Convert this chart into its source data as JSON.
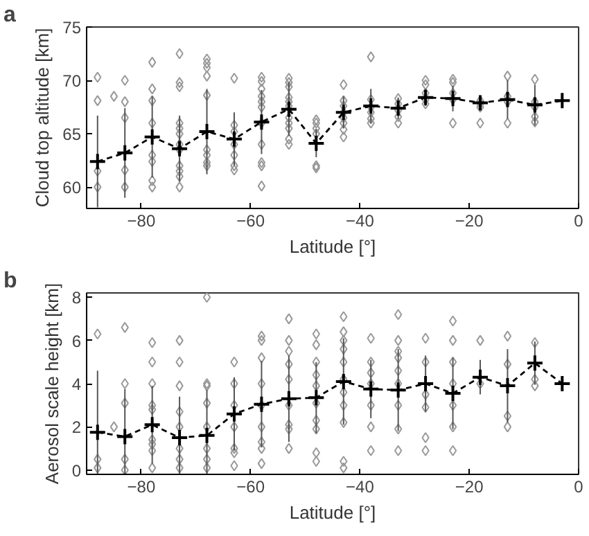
{
  "chart_data": [
    {
      "type": "scatter",
      "annotations": [
        "a"
      ],
      "xlabel": "Latitude [°]",
      "ylabel": "Cloud top altitude [km]",
      "xlim": [
        -90,
        0
      ],
      "xticks": [
        -80,
        -60,
        -40,
        -20,
        0
      ],
      "ylim": [
        58,
        75
      ],
      "yticks": [
        60,
        65,
        70,
        75
      ],
      "series": [
        {
          "marker": "diamond",
          "color": "#999999",
          "x": [
            -88,
            -88,
            -88,
            -88,
            -85,
            -83,
            -83,
            -83,
            -83,
            -83,
            -78,
            -78,
            -78,
            -78,
            -78,
            -78,
            -78,
            -78,
            -73,
            -73,
            -73,
            -73,
            -73,
            -73,
            -73,
            -73,
            -73,
            -73,
            -73,
            -73,
            -68,
            -68,
            -68,
            -68,
            -68,
            -68,
            -68,
            -68,
            -68,
            -63,
            -63,
            -63,
            -63,
            -63,
            -63,
            -63,
            -58,
            -58,
            -58,
            -58,
            -58,
            -58,
            -58,
            -58,
            -58,
            -58,
            -58,
            -53,
            -53,
            -53,
            -53,
            -53,
            -53,
            -53,
            -53,
            -53,
            -53,
            -53,
            -48,
            -48,
            -48,
            -48,
            -48,
            -48,
            -43,
            -43,
            -43,
            -43,
            -43,
            -43,
            -43,
            -43,
            -38,
            -38,
            -38,
            -38,
            -38,
            -38,
            -33,
            -33,
            -33,
            -33,
            -33,
            -28,
            -28,
            -28,
            -28,
            -28,
            -23,
            -23,
            -23,
            -23,
            -23,
            -18,
            -18,
            -18,
            -18,
            -13,
            -13,
            -13,
            -13,
            -8,
            -8,
            -8,
            -8,
            -8
          ],
          "values": [
            70.3,
            68.1,
            61.5,
            60.0,
            68.5,
            70.0,
            68.0,
            66.5,
            61.6,
            60.0,
            71.7,
            69.2,
            68.1,
            66.0,
            63.0,
            62.4,
            60.6,
            60.0,
            72.5,
            69.8,
            69.4,
            66.0,
            65.5,
            65.0,
            64.0,
            63.5,
            62.0,
            61.5,
            61.0,
            60.0,
            72.0,
            71.6,
            71.2,
            70.4,
            68.6,
            63.5,
            63.0,
            62.3,
            62.0,
            70.2,
            65.8,
            65.2,
            64.0,
            63.0,
            62.0,
            61.6,
            70.3,
            69.9,
            69.2,
            68.5,
            68.0,
            67.5,
            66.0,
            64.0,
            62.3,
            62.0,
            60.1,
            70.2,
            69.8,
            69.4,
            68.4,
            68.0,
            67.6,
            66.5,
            66.0,
            65.5,
            64.5,
            64.0,
            66.3,
            66.0,
            65.5,
            65.0,
            62.0,
            61.8,
            69.6,
            68.1,
            67.6,
            67.0,
            66.5,
            66.0,
            65.4,
            64.7,
            72.2,
            68.2,
            67.5,
            67.0,
            66.4,
            66.0,
            68.3,
            67.8,
            67.2,
            66.6,
            66.0,
            70.0,
            69.6,
            68.8,
            68.2,
            67.8,
            70.1,
            69.8,
            68.8,
            68.2,
            66.0,
            68.1,
            67.8,
            67.5,
            66.0,
            70.4,
            68.5,
            68.0,
            66.0,
            70.1,
            68.0,
            67.5,
            66.6,
            66.1
          ]
        },
        {
          "type": "line",
          "marker": "cross",
          "line_style": "dashed",
          "color": "#000000",
          "x": [
            -88,
            -83,
            -78,
            -73,
            -68,
            -63,
            -58,
            -53,
            -48,
            -43,
            -38,
            -33,
            -28,
            -23,
            -18,
            -13,
            -8,
            -3
          ],
          "values": [
            62.4,
            63.2,
            64.7,
            63.6,
            65.2,
            64.5,
            66.1,
            67.3,
            64.1,
            67.0,
            67.6,
            67.4,
            68.4,
            68.3,
            67.9,
            68.2,
            67.7,
            68.1
          ],
          "errors": [
            4.3,
            4.2,
            3.8,
            3.1,
            4.0,
            2.5,
            3.0,
            2.5,
            1.3,
            1.5,
            1.6,
            1.0,
            0.8,
            1.2,
            0.5,
            1.8,
            1.9,
            null
          ]
        }
      ]
    },
    {
      "type": "scatter",
      "annotations": [
        "b"
      ],
      "xlabel": "Latitude [°]",
      "ylabel": "Aerosol scale height [km]",
      "xlim": [
        -90,
        0
      ],
      "xticks": [
        -80,
        -60,
        -40,
        -20,
        0
      ],
      "ylim": [
        -0.2,
        8.2
      ],
      "yticks": [
        0,
        2,
        4,
        6,
        8
      ],
      "series": [
        {
          "marker": "diamond",
          "color": "#999999",
          "x": [
            -88,
            -88,
            -88,
            -85,
            -83,
            -83,
            -83,
            -83,
            -83,
            -78,
            -78,
            -78,
            -78,
            -78,
            -78,
            -78,
            -78,
            -78,
            -73,
            -73,
            -73,
            -73,
            -73,
            -73,
            -73,
            -73,
            -68,
            -68,
            -68,
            -68,
            -68,
            -68,
            -68,
            -68,
            -63,
            -63,
            -63,
            -63,
            -63,
            -63,
            -63,
            -58,
            -58,
            -58,
            -58,
            -58,
            -58,
            -58,
            -58,
            -58,
            -53,
            -53,
            -53,
            -53,
            -53,
            -53,
            -53,
            -53,
            -53,
            -48,
            -48,
            -48,
            -48,
            -48,
            -48,
            -48,
            -48,
            -48,
            -48,
            -43,
            -43,
            -43,
            -43,
            -43,
            -43,
            -43,
            -43,
            -43,
            -43,
            -43,
            -38,
            -38,
            -38,
            -38,
            -38,
            -38,
            -38,
            -33,
            -33,
            -33,
            -33,
            -33,
            -33,
            -33,
            -33,
            -33,
            -28,
            -28,
            -28,
            -28,
            -28,
            -28,
            -23,
            -23,
            -23,
            -23,
            -23,
            -23,
            -23,
            -18,
            -18,
            -13,
            -13,
            -13,
            -13,
            -8,
            -8,
            -8
          ],
          "values": [
            6.3,
            0.5,
            0.1,
            2.0,
            6.6,
            4.0,
            3.1,
            0.5,
            0.0,
            5.9,
            5.0,
            4.0,
            3.0,
            2.8,
            1.4,
            1.2,
            0.9,
            0.1,
            6.0,
            5.0,
            3.9,
            2.7,
            2.0,
            1.0,
            0.5,
            0.1,
            8.0,
            4.0,
            3.9,
            3.1,
            2.0,
            1.0,
            0.5,
            0.1,
            5.0,
            4.0,
            3.0,
            2.0,
            1.0,
            0.8,
            0.2,
            6.2,
            6.0,
            5.2,
            4.0,
            3.0,
            2.0,
            1.3,
            1.0,
            0.3,
            7.0,
            6.0,
            5.5,
            4.9,
            4.2,
            3.0,
            2.1,
            1.9,
            1.0,
            6.3,
            5.8,
            5.0,
            4.4,
            3.9,
            3.1,
            2.3,
            1.9,
            0.8,
            0.4,
            7.1,
            6.4,
            6.0,
            5.6,
            5.0,
            4.2,
            3.6,
            3.0,
            2.2,
            0.4,
            0.1,
            6.1,
            5.0,
            4.5,
            4.0,
            3.0,
            2.0,
            0.9,
            7.2,
            6.0,
            5.5,
            5.2,
            4.6,
            4.0,
            3.0,
            1.9,
            0.9,
            6.1,
            5.0,
            3.5,
            2.9,
            1.5,
            0.9,
            6.9,
            6.0,
            5.0,
            4.0,
            3.0,
            2.0,
            0.9,
            6.0,
            4.0,
            6.2,
            4.9,
            2.5,
            2.0,
            5.9,
            4.2,
            3.9
          ]
        },
        {
          "type": "line",
          "marker": "cross",
          "line_style": "dashed",
          "color": "#000000",
          "x": [
            -88,
            -83,
            -78,
            -73,
            -68,
            -63,
            -58,
            -53,
            -48,
            -43,
            -38,
            -33,
            -28,
            -23,
            -18,
            -13,
            -8,
            -3
          ],
          "values": [
            1.75,
            1.55,
            2.1,
            1.5,
            1.6,
            2.6,
            3.05,
            3.3,
            3.35,
            4.1,
            3.75,
            3.7,
            4.0,
            3.55,
            4.3,
            3.9,
            4.95,
            4.0
          ],
          "errors": [
            2.85,
            2.2,
            1.8,
            1.9,
            2.1,
            1.7,
            2.0,
            2.0,
            1.65,
            2.0,
            1.35,
            1.9,
            1.3,
            1.65,
            0.8,
            1.7,
            1.0,
            null
          ]
        }
      ]
    }
  ]
}
